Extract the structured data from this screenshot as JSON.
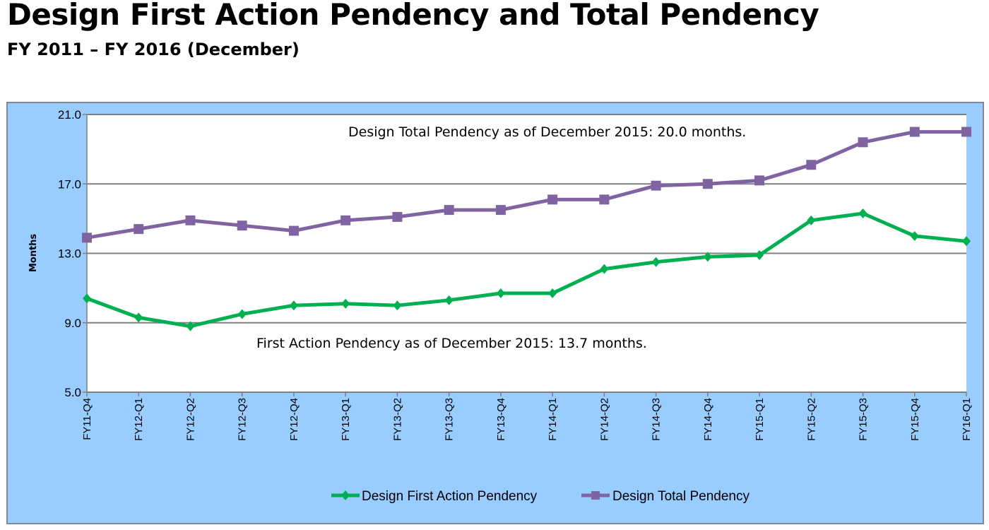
{
  "header": {
    "title": "Design First Action Pendency and Total Pendency",
    "subtitle": "FY 2011 – FY 2016 (December)"
  },
  "colors": {
    "background": "#99ccff",
    "plot_area": "#ffffff",
    "grid": "#808080",
    "first_action": "#00b050",
    "total": "#8064a2"
  },
  "chart_data": {
    "type": "line",
    "title": "Design First Action Pendency and Total Pendency",
    "subtitle": "FY 2011 – FY 2016 (December)",
    "xlabel": "",
    "ylabel": "Months",
    "ylim": [
      5.0,
      21.0
    ],
    "yticks": [
      "5.0",
      "9.0",
      "13.0",
      "17.0",
      "21.0"
    ],
    "grid": true,
    "legend_position": "bottom",
    "categories": [
      "FY11-Q4",
      "FY12-Q1",
      "FY12-Q2",
      "FY12-Q3",
      "FY12-Q4",
      "FY13-Q1",
      "FY13-Q2",
      "FY13-Q3",
      "FY13-Q4",
      "FY14-Q1",
      "FY14-Q2",
      "FY14-Q3",
      "FY14-Q4",
      "FY15-Q1",
      "FY15-Q2",
      "FY15-Q3",
      "FY15-Q4",
      "FY16-Q1"
    ],
    "series": [
      {
        "name": "Design First Action Pendency",
        "marker": "diamond",
        "color": "#00b050",
        "values": [
          10.4,
          9.3,
          8.8,
          9.5,
          10.0,
          10.1,
          10.0,
          10.3,
          10.7,
          10.7,
          12.1,
          12.5,
          12.8,
          12.9,
          14.9,
          15.3,
          14.0,
          13.7
        ]
      },
      {
        "name": "Design Total Pendency",
        "marker": "square",
        "color": "#8064a2",
        "values": [
          13.9,
          14.4,
          14.9,
          14.6,
          14.3,
          14.9,
          15.1,
          15.5,
          15.5,
          16.1,
          16.1,
          16.9,
          17.0,
          17.2,
          18.1,
          19.4,
          20.0,
          20.0
        ]
      }
    ],
    "annotations": [
      "Design Total Pendency as of December 2015: 20.0 months.",
      "First Action Pendency as of December 2015: 13.7 months."
    ]
  }
}
